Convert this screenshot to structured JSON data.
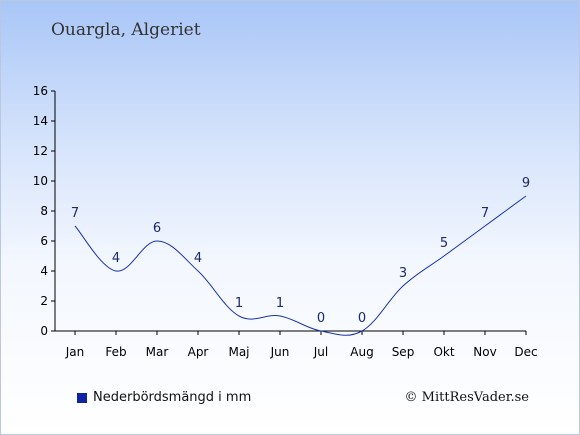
{
  "header": {
    "location": "Ouargla, Algeriet"
  },
  "legend": {
    "label": "Nederbördsmängd i mm"
  },
  "credit": {
    "text": "© MittResVader.se"
  },
  "colors": {
    "series": "#1a35a8",
    "swatch": "#0d22a6",
    "axis": "#000000"
  },
  "chart_data": {
    "type": "line",
    "title": "",
    "xlabel": "",
    "ylabel": "",
    "categories": [
      "Jan",
      "Feb",
      "Mar",
      "Apr",
      "Maj",
      "Jun",
      "Jul",
      "Aug",
      "Sep",
      "Okt",
      "Nov",
      "Dec"
    ],
    "series": [
      {
        "name": "Nederbördsmängd i mm",
        "values": [
          7,
          4,
          6,
          4,
          1,
          1,
          0,
          0,
          3,
          5,
          7,
          9
        ]
      }
    ],
    "ylim": [
      0,
      16
    ],
    "yticks": [
      0,
      2,
      4,
      6,
      8,
      10,
      12,
      14,
      16
    ],
    "grid": false,
    "legend_position": "bottom-left"
  }
}
